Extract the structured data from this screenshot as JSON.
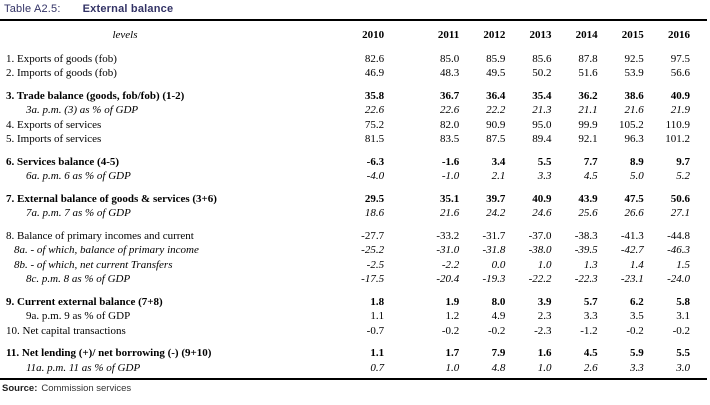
{
  "title": {
    "prefix": "Table A2.5:",
    "text": "External balance"
  },
  "colors": {
    "title": "#333366",
    "rule": "#000000",
    "text": "#000000"
  },
  "table": {
    "header_label": "levels",
    "years": [
      "2010",
      "2011",
      "2012",
      "2013",
      "2014",
      "2015",
      "2016"
    ],
    "rows": [
      {
        "label": "1. Exports of goods (fob)",
        "style": "plain",
        "indent": 0,
        "gap": false,
        "values": [
          "82.6",
          "85.0",
          "85.9",
          "85.6",
          "87.8",
          "92.5",
          "97.5"
        ]
      },
      {
        "label": "2. Imports of goods (fob)",
        "style": "plain",
        "indent": 0,
        "gap": false,
        "values": [
          "46.9",
          "48.3",
          "49.5",
          "50.2",
          "51.6",
          "53.9",
          "56.6"
        ]
      },
      {
        "label": "3. Trade balance (goods, fob/fob) (1-2)",
        "style": "bold",
        "indent": 0,
        "gap": true,
        "values": [
          "35.8",
          "36.7",
          "36.4",
          "35.4",
          "36.2",
          "38.6",
          "40.9"
        ]
      },
      {
        "label": "3a. p.m. (3) as % of GDP",
        "style": "italic",
        "indent": 2,
        "gap": false,
        "values": [
          "22.6",
          "22.6",
          "22.2",
          "21.3",
          "21.1",
          "21.6",
          "21.9"
        ]
      },
      {
        "label": "4. Exports of services",
        "style": "plain",
        "indent": 0,
        "gap": false,
        "values": [
          "75.2",
          "82.0",
          "90.9",
          "95.0",
          "99.9",
          "105.2",
          "110.9"
        ]
      },
      {
        "label": "5. Imports of services",
        "style": "plain",
        "indent": 0,
        "gap": false,
        "values": [
          "81.5",
          "83.5",
          "87.5",
          "89.4",
          "92.1",
          "96.3",
          "101.2"
        ]
      },
      {
        "label": "6. Services balance (4-5)",
        "style": "bold",
        "indent": 0,
        "gap": true,
        "values": [
          "-6.3",
          "-1.6",
          "3.4",
          "5.5",
          "7.7",
          "8.9",
          "9.7"
        ]
      },
      {
        "label": "6a. p.m. 6 as % of GDP",
        "style": "italic",
        "indent": 2,
        "gap": false,
        "values": [
          "-4.0",
          "-1.0",
          "2.1",
          "3.3",
          "4.5",
          "5.0",
          "5.2"
        ]
      },
      {
        "label": "7. External balance of goods & services (3+6)",
        "style": "bold",
        "indent": 0,
        "gap": true,
        "values": [
          "29.5",
          "35.1",
          "39.7",
          "40.9",
          "43.9",
          "47.5",
          "50.6"
        ]
      },
      {
        "label": "7a. p.m. 7 as % of GDP",
        "style": "italic",
        "indent": 2,
        "gap": false,
        "values": [
          "18.6",
          "21.6",
          "24.2",
          "24.6",
          "25.6",
          "26.6",
          "27.1"
        ]
      },
      {
        "label": "8. Balance of primary incomes and current",
        "style": "plain",
        "indent": 0,
        "gap": true,
        "values": [
          "-27.7",
          "-33.2",
          "-31.7",
          "-37.0",
          "-38.3",
          "-41.3",
          "-44.8"
        ]
      },
      {
        "label": "8a. - of which, balance of primary income",
        "style": "italic",
        "indent": 1,
        "gap": false,
        "values": [
          "-25.2",
          "-31.0",
          "-31.8",
          "-38.0",
          "-39.5",
          "-42.7",
          "-46.3"
        ]
      },
      {
        "label": "8b. - of which, net current Transfers",
        "style": "italic",
        "indent": 1,
        "gap": false,
        "values": [
          "-2.5",
          "-2.2",
          "0.0",
          "1.0",
          "1.3",
          "1.4",
          "1.5"
        ]
      },
      {
        "label": "8c. p.m. 8 as % of GDP",
        "style": "italic",
        "indent": 2,
        "gap": false,
        "values": [
          "-17.5",
          "-20.4",
          "-19.3",
          "-22.2",
          "-22.3",
          "-23.1",
          "-24.0"
        ]
      },
      {
        "label": "9. Current external balance (7+8)",
        "style": "bold",
        "indent": 0,
        "gap": true,
        "values": [
          "1.8",
          "1.9",
          "8.0",
          "3.9",
          "5.7",
          "6.2",
          "5.8"
        ]
      },
      {
        "label": "9a. p.m. 9 as % of GDP",
        "style": "plain",
        "indent": 2,
        "gap": false,
        "values": [
          "1.1",
          "1.2",
          "4.9",
          "2.3",
          "3.3",
          "3.5",
          "3.1"
        ]
      },
      {
        "label": "10. Net capital transactions",
        "style": "plain",
        "indent": 0,
        "gap": false,
        "values": [
          "-0.7",
          "-0.2",
          "-0.2",
          "-2.3",
          "-1.2",
          "-0.2",
          "-0.2"
        ]
      },
      {
        "label": "11. Net lending (+)/ net borrowing (-) (9+10)",
        "style": "bold",
        "indent": 0,
        "gap": true,
        "values": [
          "1.1",
          "1.7",
          "7.9",
          "1.6",
          "4.5",
          "5.9",
          "5.5"
        ]
      },
      {
        "label": "11a. p.m. 11 as % of GDP",
        "style": "italic",
        "indent": 2,
        "gap": false,
        "values": [
          "0.7",
          "1.0",
          "4.8",
          "1.0",
          "2.6",
          "3.3",
          "3.0"
        ]
      }
    ]
  },
  "footer": {
    "source_label": "Source:",
    "source_text": "Commission services"
  }
}
